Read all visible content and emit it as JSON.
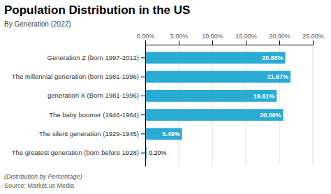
{
  "chart_data": {
    "type": "bar",
    "orientation": "horizontal",
    "title": "Population Distribution in the US",
    "subtitle": "By Generation (2022)",
    "annotations": [
      "(Distribution by Percentage)",
      "Source: Market.us Media"
    ],
    "categories": [
      "The greatest generation (born before 1928)",
      "The silent generation (1929-1945)",
      "The baby boomer (1946-1964)",
      "generation X (Born 1981-1996)",
      "The millennial generation (born 1981-1996)",
      "Generation Z (born 1997-2012)"
    ],
    "values": [
      0.2,
      5.49,
      20.58,
      19.61,
      21.67,
      20.88
    ],
    "value_labels": [
      "0.20%",
      "5.49%",
      "20.58%",
      "19.61%",
      "21.67%",
      "20.88%"
    ],
    "data_labels": true,
    "color": "#29ABD4",
    "xlim": [
      0,
      25
    ],
    "xticks": [
      {
        "value": 0,
        "label": "0.00%"
      },
      {
        "value": 5,
        "label": "5.00%"
      },
      {
        "value": 10,
        "label": "10.00%"
      },
      {
        "value": 15,
        "label": "15.00%"
      },
      {
        "value": 20,
        "label": "20.00%"
      },
      {
        "value": 25,
        "label": "25.00%"
      }
    ],
    "grid": true
  }
}
